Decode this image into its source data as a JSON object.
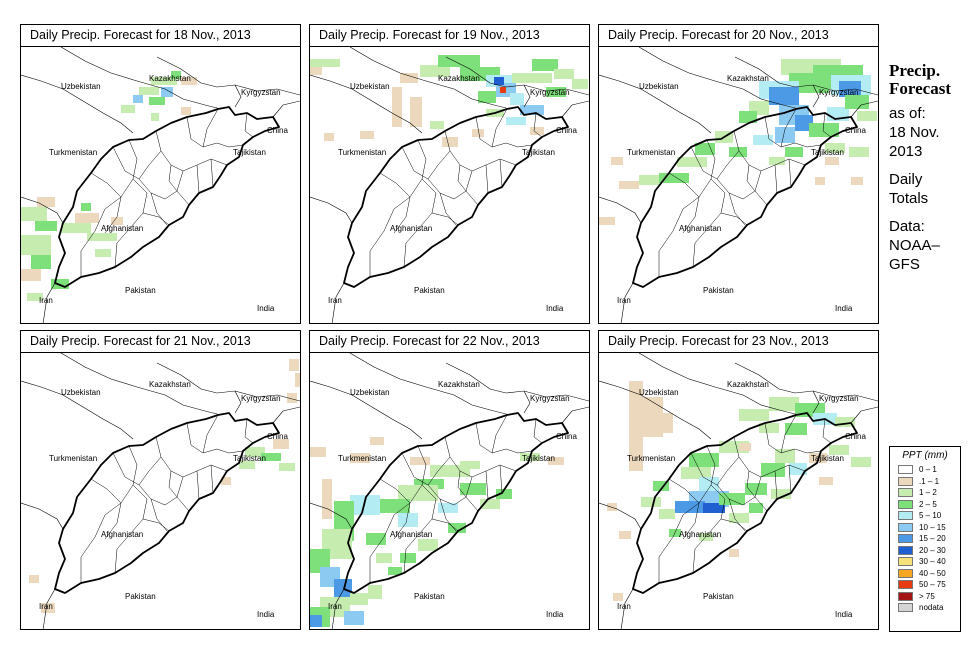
{
  "side": {
    "title_line1": "Precip.",
    "title_line2": "Forecast",
    "asof_line1": "as of:",
    "asof_line2": "18 Nov.",
    "asof_line3": "2013",
    "totals_line1": "Daily",
    "totals_line2": "Totals",
    "data_line1": "Data:",
    "data_line2": "NOAA–",
    "data_line3": "GFS"
  },
  "map_labels": {
    "uzbekistan": "Uzbekistan",
    "kazakhstan": "Kazakhstan",
    "kyrgyzstan": "Kyrgyzstan",
    "china": "China",
    "turkmenistan": "Turkmenistan",
    "tajikistan": "Tajikistan",
    "afghanistan": "Afghanistan",
    "pakistan": "Pakistan",
    "iran": "Iran",
    "india": "India"
  },
  "panels": [
    {
      "title": "Daily Precip. Forecast for  18 Nov., 2013",
      "pattern": "d18"
    },
    {
      "title": "Daily Precip. Forecast for  19 Nov., 2013",
      "pattern": "d19"
    },
    {
      "title": "Daily Precip. Forecast for  20 Nov., 2013",
      "pattern": "d20"
    },
    {
      "title": "Daily Precip. Forecast for  21 Nov., 2013",
      "pattern": "d21"
    },
    {
      "title": "Daily Precip. Forecast for  22 Nov., 2013",
      "pattern": "d22"
    },
    {
      "title": "Daily Precip. Forecast for  23 Nov., 2013",
      "pattern": "d23"
    }
  ],
  "legend": {
    "title": "PPT (mm)",
    "items": [
      {
        "label": "0 – 1",
        "color": "#ffffff"
      },
      {
        "label": ".1 – 1",
        "color": "#ecd9bd"
      },
      {
        "label": "1 – 2",
        "color": "#c6ecb0"
      },
      {
        "label": "2 – 5",
        "color": "#7ee07a"
      },
      {
        "label": "5 – 10",
        "color": "#b4ecf4"
      },
      {
        "label": "10 – 15",
        "color": "#8ccaf2"
      },
      {
        "label": "15 – 20",
        "color": "#4c9ae6"
      },
      {
        "label": "20 – 30",
        "color": "#1f5fd2"
      },
      {
        "label": "30 – 40",
        "color": "#f7e27a"
      },
      {
        "label": "40 – 50",
        "color": "#f5a623"
      },
      {
        "label": "50 – 75",
        "color": "#e63b12"
      },
      {
        "label": "> 75",
        "color": "#a31515"
      },
      {
        "label": "nodata",
        "color": "#d4d4d4"
      }
    ]
  }
}
